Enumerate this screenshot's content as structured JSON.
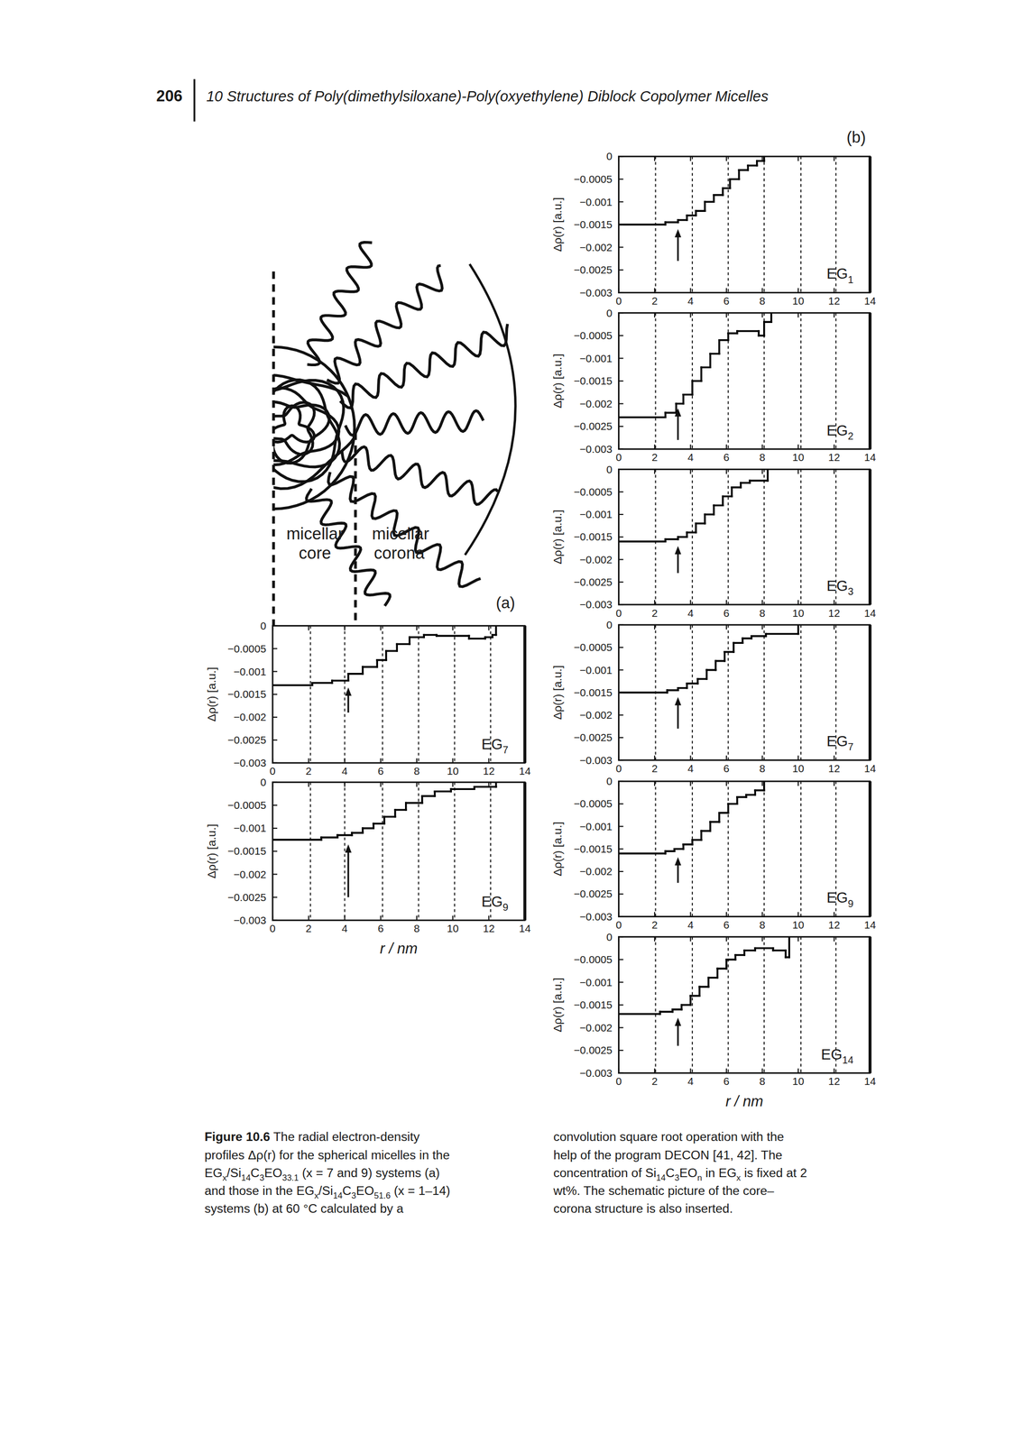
{
  "page": {
    "header": {
      "page_number": "206",
      "title": "10 Structures of Poly(dimethylsiloxane)-Poly(oxyethylene) Diblock Copolymer Micelles"
    },
    "panel_labels": [
      "(a)",
      "(b)"
    ],
    "schematic": {
      "core": [
        "micellar",
        "core"
      ],
      "corona": [
        "micellar",
        "corona"
      ]
    },
    "caption": {
      "left": [
        [
          {
            "text": "Figure 10.6",
            "bold": true
          },
          {
            "text": "  The radial electron-density"
          }
        ],
        [
          {
            "text": "profiles Δρ(r) for the spherical micelles in the"
          }
        ],
        [
          {
            "text": "EG"
          },
          {
            "text": "x",
            "sub": true
          },
          {
            "text": "/Si"
          },
          {
            "text": "14",
            "sub": true
          },
          {
            "text": "C"
          },
          {
            "text": "3",
            "sub": true
          },
          {
            "text": "EO"
          },
          {
            "text": "33.1",
            "sub": true
          },
          {
            "text": " (x = 7 and 9) systems (a)"
          }
        ],
        [
          {
            "text": "and those in the EG"
          },
          {
            "text": "x",
            "sub": true
          },
          {
            "text": "/Si"
          },
          {
            "text": "14",
            "sub": true
          },
          {
            "text": "C"
          },
          {
            "text": "3",
            "sub": true
          },
          {
            "text": "EO"
          },
          {
            "text": "51.6",
            "sub": true
          },
          {
            "text": " (x = 1–14)"
          }
        ],
        [
          {
            "text": "systems (b) at 60 °C calculated by a"
          }
        ]
      ],
      "right": [
        [
          {
            "text": "convolution square root operation with the"
          }
        ],
        [
          {
            "text": "help of the program DECON [41, 42]. The"
          }
        ],
        [
          {
            "text": "concentration of Si"
          },
          {
            "text": "14",
            "sub": true
          },
          {
            "text": "C"
          },
          {
            "text": "3",
            "sub": true
          },
          {
            "text": "EO"
          },
          {
            "text": "n",
            "sub": true
          },
          {
            "text": " in EG"
          },
          {
            "text": "x",
            "sub": true
          },
          {
            "text": " is fixed at 2"
          }
        ],
        [
          {
            "text": "wt%. The schematic picture of the core–"
          }
        ],
        [
          {
            "text": "corona structure is also inserted."
          }
        ]
      ]
    }
  },
  "chart_data": [
    {
      "type": "line",
      "line_style": "step",
      "label": [
        {
          "text": "EG"
        },
        {
          "text": "7",
          "sub": true
        }
      ],
      "ylabel": "Δρ(r) [a.u.]",
      "xlim": [
        0,
        14
      ],
      "ylim": [
        -0.003,
        0
      ],
      "xticks": [
        0,
        2,
        4,
        6,
        8,
        10,
        12,
        14
      ],
      "yticks": [
        {
          "value": 0,
          "label": "0"
        },
        {
          "value": -0.0005,
          "label": "−0.0005"
        },
        {
          "value": -0.001,
          "label": "−0.001"
        },
        {
          "value": -0.0015,
          "label": "−0.0015"
        },
        {
          "value": -0.002,
          "label": "−0.002"
        },
        {
          "value": -0.0025,
          "label": "−0.0025"
        },
        {
          "value": -0.003,
          "label": "−0.003"
        }
      ],
      "series": [
        {
          "color": "#000000",
          "x": [
            0,
            2.2,
            3.3,
            4.2,
            5.0,
            5.8,
            6.3,
            6.9,
            7.6,
            8.4,
            9.1,
            10.9,
            11.8,
            12.2,
            12.4
          ],
          "values": [
            -0.0013,
            -0.00125,
            -0.0012,
            -0.00105,
            -0.0009,
            -0.00075,
            -0.00055,
            -0.0004,
            -0.00025,
            -0.0002,
            -0.00022,
            -0.00028,
            -0.00025,
            -0.0002,
            0
          ]
        }
      ],
      "vlines": [
        2.1,
        4.0,
        6.1,
        8.1,
        10.1,
        12.1
      ],
      "arrow": {
        "x": 4.2,
        "y_from": -0.0019,
        "y_to": -0.00135
      }
    },
    {
      "type": "line",
      "line_style": "step",
      "label": [
        {
          "text": "EG"
        },
        {
          "text": "9",
          "sub": true
        }
      ],
      "ylabel": "Δρ(r) [a.u.]",
      "xlabel": "r / nm",
      "xlim": [
        0,
        14
      ],
      "ylim": [
        -0.003,
        0
      ],
      "xticks": [
        0,
        2,
        4,
        6,
        8,
        10,
        12,
        14
      ],
      "yticks": [
        {
          "value": 0,
          "label": "0"
        },
        {
          "value": -0.0005,
          "label": "−0.0005"
        },
        {
          "value": -0.001,
          "label": "−0.001"
        },
        {
          "value": -0.0015,
          "label": "−0.0015"
        },
        {
          "value": -0.002,
          "label": "−0.002"
        },
        {
          "value": -0.0025,
          "label": "−0.0025"
        },
        {
          "value": -0.003,
          "label": "−0.003"
        }
      ],
      "series": [
        {
          "color": "#000000",
          "x": [
            0,
            2.7,
            3.6,
            4.4,
            5.0,
            5.6,
            6.2,
            6.8,
            7.4,
            8.3,
            9.0,
            9.9,
            11.2,
            12.4
          ],
          "values": [
            -0.00125,
            -0.0012,
            -0.00115,
            -0.0011,
            -0.001,
            -0.0009,
            -0.00075,
            -0.0006,
            -0.00045,
            -0.0003,
            -0.0002,
            -0.00015,
            -0.0001,
            0
          ]
        }
      ],
      "vlines": [
        2.1,
        4.0,
        6.1,
        8.1,
        10.1,
        12.1
      ],
      "arrow": {
        "x": 4.2,
        "y_from": -0.0025,
        "y_to": -0.00135
      }
    },
    {
      "type": "line",
      "line_style": "step",
      "label": [
        {
          "text": "EG"
        },
        {
          "text": "1",
          "sub": true
        }
      ],
      "ylabel": "Δρ(r) [a.u.]",
      "xlim": [
        0,
        14
      ],
      "ylim": [
        -0.003,
        0
      ],
      "xticks": [
        0,
        2,
        4,
        6,
        8,
        10,
        12,
        14
      ],
      "yticks": [
        {
          "value": 0,
          "label": "0"
        },
        {
          "value": -0.0005,
          "label": "−0.0005"
        },
        {
          "value": -0.001,
          "label": "−0.001"
        },
        {
          "value": -0.0015,
          "label": "−0.0015"
        },
        {
          "value": -0.002,
          "label": "−0.002"
        },
        {
          "value": -0.0025,
          "label": "−0.0025"
        },
        {
          "value": -0.003,
          "label": "−0.003"
        }
      ],
      "series": [
        {
          "color": "#000000",
          "x": [
            0,
            2.6,
            3.3,
            3.8,
            4.3,
            4.8,
            5.3,
            5.8,
            6.2,
            6.7,
            7.2,
            7.7,
            8.1
          ],
          "values": [
            -0.0015,
            -0.00145,
            -0.0014,
            -0.0013,
            -0.0012,
            -0.001,
            -0.00085,
            -0.0007,
            -0.0005,
            -0.0003,
            -0.0002,
            -0.0001,
            0
          ]
        }
      ],
      "vlines": [
        2.05,
        4.1,
        6.1,
        8.1,
        10.15,
        12.1
      ],
      "arrow": {
        "x": 3.3,
        "y_from": -0.0023,
        "y_to": -0.0016
      }
    },
    {
      "type": "line",
      "line_style": "step",
      "label": [
        {
          "text": "EG"
        },
        {
          "text": "2",
          "sub": true
        }
      ],
      "ylabel": "Δρ(r) [a.u.]",
      "xlim": [
        0,
        14
      ],
      "ylim": [
        -0.003,
        0
      ],
      "xticks": [
        0,
        2,
        4,
        6,
        8,
        10,
        12,
        14
      ],
      "yticks": [
        {
          "value": 0,
          "label": "0"
        },
        {
          "value": -0.0005,
          "label": "−0.0005"
        },
        {
          "value": -0.001,
          "label": "−0.001"
        },
        {
          "value": -0.0015,
          "label": "−0.0015"
        },
        {
          "value": -0.002,
          "label": "−0.002"
        },
        {
          "value": -0.0025,
          "label": "−0.0025"
        },
        {
          "value": -0.003,
          "label": "−0.003"
        }
      ],
      "series": [
        {
          "color": "#000000",
          "x": [
            0,
            2.6,
            3.2,
            3.6,
            4.1,
            4.6,
            5.1,
            5.6,
            6.1,
            6.6,
            7.8,
            8.1,
            8.5
          ],
          "values": [
            -0.0023,
            -0.0022,
            -0.002,
            -0.0018,
            -0.0015,
            -0.0012,
            -0.0009,
            -0.0006,
            -0.00045,
            -0.0004,
            -0.0005,
            -0.0002,
            0
          ]
        }
      ],
      "vlines": [
        2.05,
        4.1,
        6.1,
        8.1,
        10.15,
        12.1
      ],
      "arrow": {
        "x": 3.3,
        "y_from": -0.0028,
        "y_to": -0.0021
      }
    },
    {
      "type": "line",
      "line_style": "step",
      "label": [
        {
          "text": "EG"
        },
        {
          "text": "3",
          "sub": true
        }
      ],
      "ylabel": "Δρ(r) [a.u.]",
      "xlim": [
        0,
        14
      ],
      "ylim": [
        -0.003,
        0
      ],
      "xticks": [
        0,
        2,
        4,
        6,
        8,
        10,
        12,
        14
      ],
      "yticks": [
        {
          "value": 0,
          "label": "0"
        },
        {
          "value": -0.0005,
          "label": "−0.0005"
        },
        {
          "value": -0.001,
          "label": "−0.001"
        },
        {
          "value": -0.0015,
          "label": "−0.0015"
        },
        {
          "value": -0.002,
          "label": "−0.002"
        },
        {
          "value": -0.0025,
          "label": "−0.0025"
        },
        {
          "value": -0.003,
          "label": "−0.003"
        }
      ],
      "series": [
        {
          "color": "#000000",
          "x": [
            0,
            2.6,
            3.3,
            3.8,
            4.3,
            4.8,
            5.3,
            5.8,
            6.3,
            6.8,
            7.3,
            8.3
          ],
          "values": [
            -0.0016,
            -0.00155,
            -0.0015,
            -0.0014,
            -0.0012,
            -0.001,
            -0.0008,
            -0.0006,
            -0.0004,
            -0.0003,
            -0.00025,
            0
          ]
        }
      ],
      "vlines": [
        2.05,
        4.1,
        6.1,
        8.1,
        10.15,
        12.1
      ],
      "arrow": {
        "x": 3.3,
        "y_from": -0.0023,
        "y_to": -0.0017
      }
    },
    {
      "type": "line",
      "line_style": "step",
      "label": [
        {
          "text": "EG"
        },
        {
          "text": "7",
          "sub": true
        }
      ],
      "ylabel": "Δρ(r) [a.u.]",
      "xlim": [
        0,
        14
      ],
      "ylim": [
        -0.003,
        0
      ],
      "xticks": [
        0,
        2,
        4,
        6,
        8,
        10,
        12,
        14
      ],
      "yticks": [
        {
          "value": 0,
          "label": "0"
        },
        {
          "value": -0.0005,
          "label": "−0.0005"
        },
        {
          "value": -0.001,
          "label": "−0.001"
        },
        {
          "value": -0.0015,
          "label": "−0.0015"
        },
        {
          "value": -0.002,
          "label": "−0.002"
        },
        {
          "value": -0.0025,
          "label": "−0.0025"
        },
        {
          "value": -0.003,
          "label": "−0.003"
        }
      ],
      "series": [
        {
          "color": "#000000",
          "x": [
            0,
            2.7,
            3.3,
            3.8,
            4.4,
            4.9,
            5.4,
            5.9,
            6.4,
            6.9,
            7.4,
            8.2,
            10.0
          ],
          "values": [
            -0.0015,
            -0.00145,
            -0.0014,
            -0.0013,
            -0.0012,
            -0.001,
            -0.0008,
            -0.0006,
            -0.0004,
            -0.0003,
            -0.00025,
            -0.0002,
            0
          ]
        }
      ],
      "vlines": [
        2.05,
        4.1,
        6.1,
        8.1,
        10.15,
        12.1
      ],
      "arrow": {
        "x": 3.3,
        "y_from": -0.0023,
        "y_to": -0.0016
      }
    },
    {
      "type": "line",
      "line_style": "step",
      "label": [
        {
          "text": "EG"
        },
        {
          "text": "9",
          "sub": true
        }
      ],
      "ylabel": "Δρ(r) [a.u.]",
      "xlim": [
        0,
        14
      ],
      "ylim": [
        -0.003,
        0
      ],
      "xticks": [
        0,
        2,
        4,
        6,
        8,
        10,
        12,
        14
      ],
      "yticks": [
        {
          "value": 0,
          "label": "0"
        },
        {
          "value": -0.0005,
          "label": "−0.0005"
        },
        {
          "value": -0.001,
          "label": "−0.001"
        },
        {
          "value": -0.0015,
          "label": "−0.0015"
        },
        {
          "value": -0.002,
          "label": "−0.002"
        },
        {
          "value": -0.0025,
          "label": "−0.0025"
        },
        {
          "value": -0.003,
          "label": "−0.003"
        }
      ],
      "series": [
        {
          "color": "#000000",
          "x": [
            0,
            2.6,
            3.1,
            3.6,
            4.1,
            4.6,
            5.1,
            5.6,
            6.1,
            6.6,
            7.1,
            7.6,
            8.1
          ],
          "values": [
            -0.0016,
            -0.00155,
            -0.0015,
            -0.0014,
            -0.0013,
            -0.0011,
            -0.0009,
            -0.0007,
            -0.0005,
            -0.00035,
            -0.0003,
            -0.0002,
            0
          ]
        }
      ],
      "vlines": [
        2.05,
        4.1,
        6.1,
        8.1,
        10.15,
        12.1
      ],
      "arrow": {
        "x": 3.3,
        "y_from": -0.00225,
        "y_to": -0.00168
      }
    },
    {
      "type": "line",
      "line_style": "step",
      "label": [
        {
          "text": "EG"
        },
        {
          "text": "14",
          "sub": true
        }
      ],
      "ylabel": "Δρ(r) [a.u.]",
      "xlabel": "r / nm",
      "xlim": [
        0,
        14
      ],
      "ylim": [
        -0.003,
        0
      ],
      "xticks": [
        0,
        2,
        4,
        6,
        8,
        10,
        12,
        14
      ],
      "yticks": [
        {
          "value": 0,
          "label": "0"
        },
        {
          "value": -0.0005,
          "label": "−0.0005"
        },
        {
          "value": -0.001,
          "label": "−0.001"
        },
        {
          "value": -0.0015,
          "label": "−0.0015"
        },
        {
          "value": -0.002,
          "label": "−0.002"
        },
        {
          "value": -0.0025,
          "label": "−0.0025"
        },
        {
          "value": -0.003,
          "label": "−0.003"
        }
      ],
      "series": [
        {
          "color": "#000000",
          "x": [
            0,
            2.3,
            3.0,
            3.5,
            4.0,
            4.5,
            5.0,
            5.5,
            6.0,
            6.5,
            7.0,
            7.6,
            8.6,
            9.3,
            9.5
          ],
          "values": [
            -0.0017,
            -0.00165,
            -0.0016,
            -0.0015,
            -0.0013,
            -0.0011,
            -0.0009,
            -0.0007,
            -0.0005,
            -0.0004,
            -0.0003,
            -0.00025,
            -0.0003,
            -0.00045,
            0
          ]
        }
      ],
      "vlines": [
        2.05,
        4.1,
        6.1,
        8.1,
        10.15,
        12.1
      ],
      "arrow": {
        "x": 3.3,
        "y_from": -0.0024,
        "y_to": -0.00178
      }
    }
  ]
}
